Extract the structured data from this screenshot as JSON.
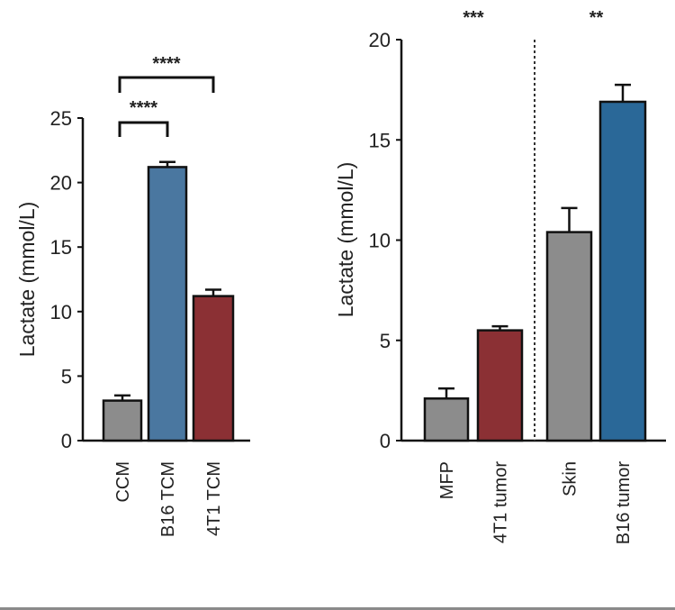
{
  "chart_data": [
    {
      "type": "bar",
      "ylabel": "Lactate (mmol/L)",
      "xlabel": "",
      "ylim": [
        0,
        25
      ],
      "yticks": [
        0,
        5,
        10,
        15,
        20,
        25
      ],
      "categories": [
        "CCM",
        "B16 TCM",
        "4T1 TCM"
      ],
      "values": [
        3.1,
        21.2,
        11.2
      ],
      "errors": [
        0.4,
        0.4,
        0.5
      ],
      "colors": [
        "#8c8c8c",
        "#4a77a0",
        "#8b3034"
      ],
      "grid": false,
      "annotations": [
        {
          "from": "CCM",
          "to": "B16 TCM",
          "text": "****"
        },
        {
          "from": "CCM",
          "to": "4T1 TCM",
          "text": "****"
        }
      ]
    },
    {
      "type": "bar",
      "ylabel": "Lactate (mmol/L)",
      "xlabel": "",
      "ylim": [
        0,
        20
      ],
      "yticks": [
        0,
        5,
        10,
        15,
        20
      ],
      "categories": [
        "MFP",
        "4T1 tumor",
        "Skin",
        "B16 tumor"
      ],
      "values": [
        2.1,
        5.5,
        10.4,
        16.9
      ],
      "errors": [
        0.5,
        0.2,
        1.2,
        0.85
      ],
      "colors": [
        "#8c8c8c",
        "#8b3034",
        "#8c8c8c",
        "#2a6898"
      ],
      "grid": false,
      "separator_after": "4T1 tumor",
      "annotations": [
        {
          "group": [
            "MFP",
            "4T1 tumor"
          ],
          "text": "***"
        },
        {
          "group": [
            "Skin",
            "B16 tumor"
          ],
          "text": "**"
        }
      ]
    }
  ]
}
